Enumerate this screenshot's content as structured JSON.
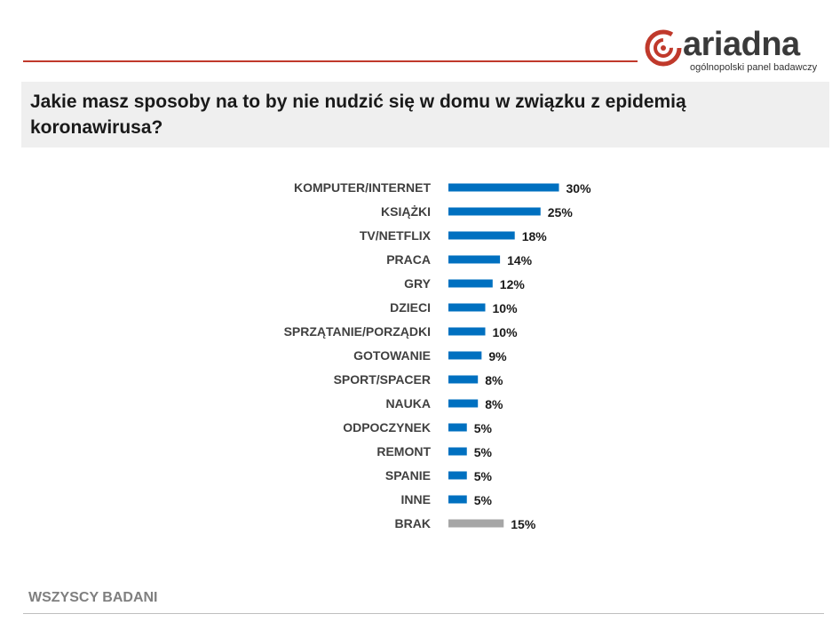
{
  "branding": {
    "logo_word": "ariadna",
    "logo_tagline": "ogólnopolski panel badawczy",
    "accent_color": "#c0392b"
  },
  "question": "Jakie masz sposoby na to by nie nudzić się w domu w związku z epidemią koronawirusa?",
  "footer": {
    "base_label": "WSZYSCY BADANI"
  },
  "chart_data": {
    "type": "bar",
    "orientation": "horizontal",
    "title": "Jakie masz sposoby na to by nie nudzić się w domu w związku z epidemią koronawirusa?",
    "xlabel": "",
    "ylabel": "",
    "grid": false,
    "unit": "%",
    "xlim": [
      0,
      30
    ],
    "categories": [
      "KOMPUTER/INTERNET",
      "KSIĄŻKI",
      "TV/NETFLIX",
      "PRACA",
      "GRY",
      "DZIECI",
      "SPRZĄTANIE/PORZĄDKI",
      "GOTOWANIE",
      "SPORT/SPACER",
      "NAUKA",
      "ODPOCZYNEK",
      "REMONT",
      "SPANIE",
      "INNE",
      "BRAK"
    ],
    "values": [
      30,
      25,
      18,
      14,
      12,
      10,
      10,
      9,
      8,
      8,
      5,
      5,
      5,
      5,
      15
    ],
    "value_labels": [
      "30%",
      "25%",
      "18%",
      "14%",
      "12%",
      "10%",
      "10%",
      "9%",
      "8%",
      "8%",
      "5%",
      "5%",
      "5%",
      "5%",
      "15%"
    ],
    "bar_colors": [
      "#0070c0",
      "#0070c0",
      "#0070c0",
      "#0070c0",
      "#0070c0",
      "#0070c0",
      "#0070c0",
      "#0070c0",
      "#0070c0",
      "#0070c0",
      "#0070c0",
      "#0070c0",
      "#0070c0",
      "#0070c0",
      "#a6a6a6"
    ]
  }
}
